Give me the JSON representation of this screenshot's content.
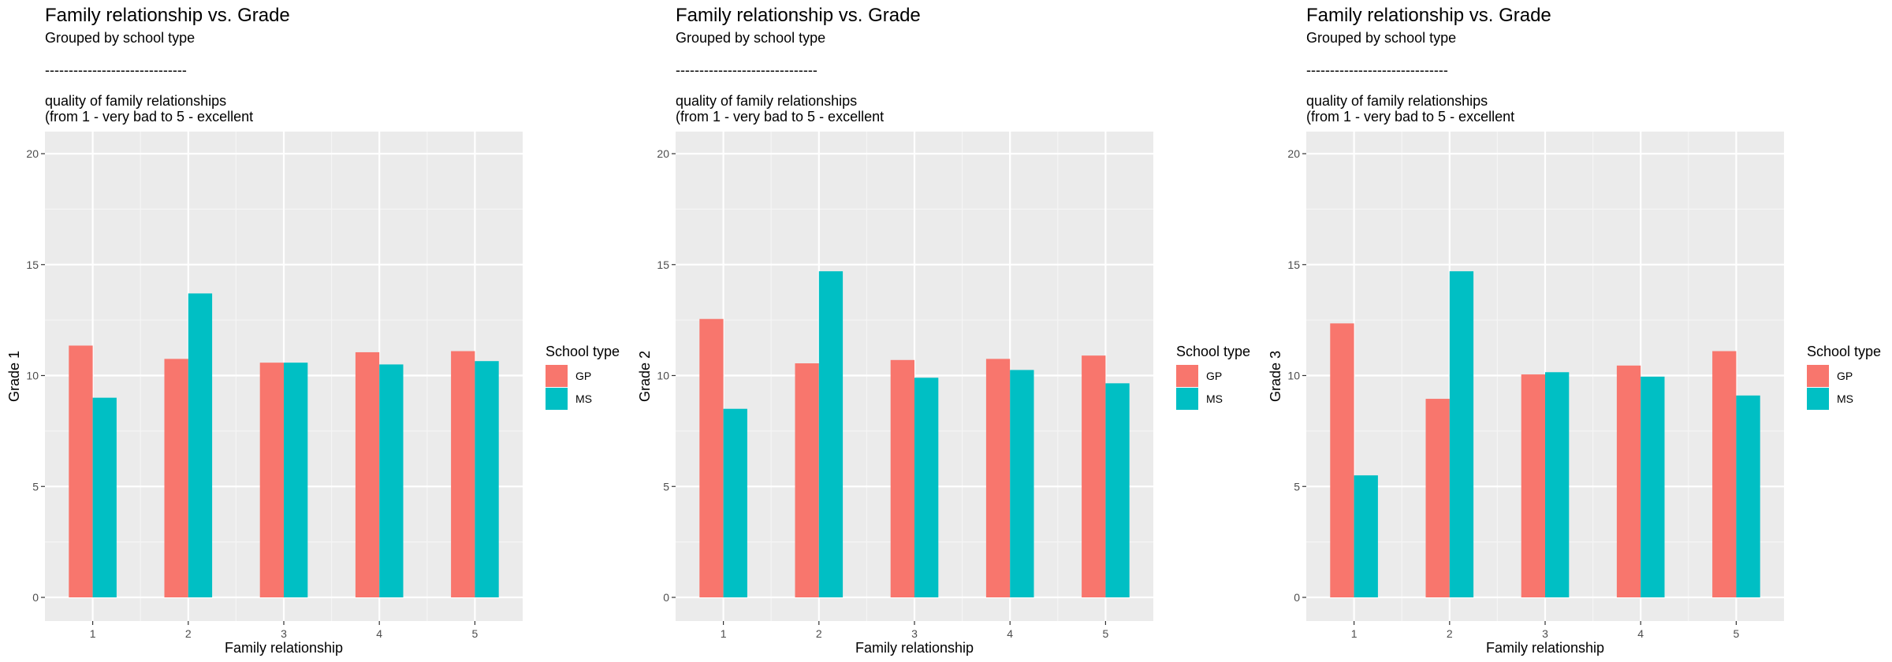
{
  "chart_data": [
    {
      "type": "bar",
      "title": "Family relationship vs. Grade",
      "subtitle_lines": [
        "Grouped by school type",
        "------------------------------",
        "",
        "quality of family relationships",
        "(from 1 - very bad to 5 - excellent"
      ],
      "xlabel": "Family relationship",
      "ylabel": "Grade 1",
      "categories": [
        "1",
        "2",
        "3",
        "4",
        "5"
      ],
      "ylim": [
        0,
        20
      ],
      "yticks": [
        0,
        5,
        10,
        15,
        20
      ],
      "legend": {
        "title": "School type",
        "placement": "right"
      },
      "series": [
        {
          "name": "GP",
          "color": "#F8766D",
          "values": [
            11.35,
            10.75,
            10.58,
            11.05,
            11.1
          ]
        },
        {
          "name": "MS",
          "color": "#00BFC4",
          "values": [
            9.0,
            13.7,
            10.58,
            10.5,
            10.65
          ]
        }
      ]
    },
    {
      "type": "bar",
      "title": "Family relationship vs. Grade",
      "subtitle_lines": [
        "Grouped by school type",
        "------------------------------",
        "",
        "quality of family relationships",
        "(from 1 - very bad to 5 - excellent"
      ],
      "xlabel": "Family relationship",
      "ylabel": "Grade 2",
      "categories": [
        "1",
        "2",
        "3",
        "4",
        "5"
      ],
      "ylim": [
        0,
        20
      ],
      "yticks": [
        0,
        5,
        10,
        15,
        20
      ],
      "legend": {
        "title": "School type",
        "placement": "right"
      },
      "series": [
        {
          "name": "GP",
          "color": "#F8766D",
          "values": [
            12.55,
            10.55,
            10.7,
            10.75,
            10.9
          ]
        },
        {
          "name": "MS",
          "color": "#00BFC4",
          "values": [
            8.5,
            14.7,
            9.9,
            10.25,
            9.65
          ]
        }
      ]
    },
    {
      "type": "bar",
      "title": "Family relationship vs. Grade",
      "subtitle_lines": [
        "Grouped by school type",
        "------------------------------",
        "",
        "quality of family relationships",
        "(from 1 - very bad to 5 - excellent"
      ],
      "xlabel": "Family relationship",
      "ylabel": "Grade 3",
      "categories": [
        "1",
        "2",
        "3",
        "4",
        "5"
      ],
      "ylim": [
        0,
        20
      ],
      "yticks": [
        0,
        5,
        10,
        15,
        20
      ],
      "legend": {
        "title": "School type",
        "placement": "right"
      },
      "series": [
        {
          "name": "GP",
          "color": "#F8766D",
          "values": [
            12.35,
            8.95,
            10.05,
            10.45,
            11.1
          ]
        },
        {
          "name": "MS",
          "color": "#00BFC4",
          "values": [
            5.5,
            14.7,
            10.15,
            9.95,
            9.1
          ]
        }
      ]
    }
  ]
}
